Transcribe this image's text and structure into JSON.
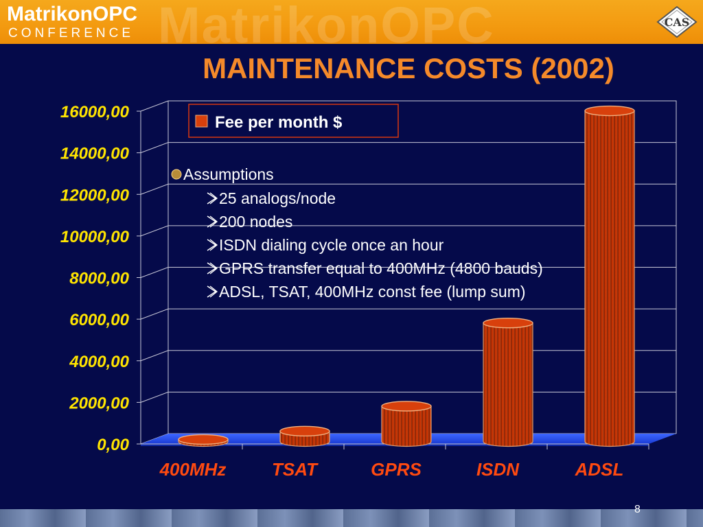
{
  "header": {
    "logo_word": "MatrikonOPC",
    "logo_sub": "CONFERENCE",
    "watermark": "MatrikonOPC",
    "corner_logo": "CAS"
  },
  "slide": {
    "title": "MAINTENANCE COSTS (2002)",
    "page_number": "8"
  },
  "colors": {
    "background": "#050a4a",
    "accent_orange": "#f39a10",
    "title": "#f58a2a",
    "bar": "#c83200",
    "axis_label": "#ffe400",
    "category_label": "#ff4a10"
  },
  "chart_data": {
    "type": "bar",
    "categories": [
      "400MHz",
      "TSAT",
      "GPRS",
      "ISDN",
      "ADSL"
    ],
    "series": [
      {
        "name": "Fee per month $",
        "values": [
          100,
          500,
          1700,
          5700,
          15900
        ]
      }
    ],
    "ylim": [
      0,
      16000
    ],
    "yticks": [
      "0,00",
      "2000,00",
      "4000,00",
      "6000,00",
      "8000,00",
      "10000,00",
      "12000,00",
      "14000,00",
      "16000,00"
    ],
    "grid": true,
    "legend": "top-center"
  },
  "assumptions": {
    "heading": "Assumptions",
    "items": [
      "25 analogs/node",
      "200 nodes",
      "ISDN dialing cycle once an hour",
      "GPRS transfer equal to 400MHz (4800 bauds)",
      "ADSL, TSAT, 400MHz const fee (lump sum)"
    ]
  }
}
